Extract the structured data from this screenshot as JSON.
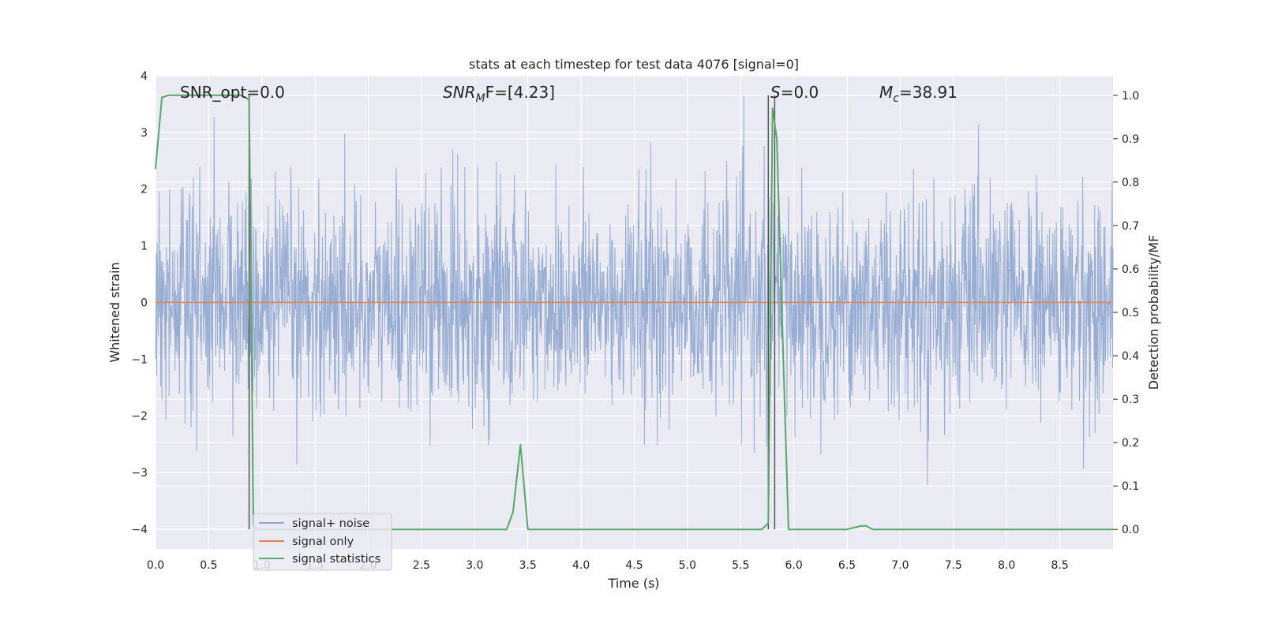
{
  "chart_data": {
    "type": "line",
    "title": "stats at each timestep for test data 4076 [signal=0]",
    "xlabel": "Time (s)",
    "ylabel_left": "Whitened strain",
    "ylabel_right": "Detection probability/MF",
    "xlim": [
      0.0,
      9.0
    ],
    "ylim_left": [
      -4.35,
      4.0
    ],
    "ylim_right": [
      -0.045,
      1.045
    ],
    "x_ticks": [
      "0.0",
      "0.5",
      "1.0",
      "1.5",
      "2.0",
      "2.5",
      "3.0",
      "3.5",
      "4.0",
      "4.5",
      "5.0",
      "5.5",
      "6.0",
      "6.5",
      "7.0",
      "7.5",
      "8.0",
      "8.5"
    ],
    "y_ticks_left": [
      "4",
      "3",
      "2",
      "1",
      "0",
      "−1",
      "−2",
      "−3",
      "−4"
    ],
    "y_ticks_right": [
      "1.0",
      "0.9",
      "0.8",
      "0.7",
      "0.6",
      "0.5",
      "0.4",
      "0.3",
      "0.2",
      "0.1",
      "0.0"
    ],
    "grid": true,
    "legend_position": "lower-left",
    "annotations": {
      "snr_opt": "SNR_opt=0.0",
      "snr_mf_label": "SNR",
      "snr_mf_sub": "M",
      "snr_mf_rest": "F=[4.23]",
      "s_label": "S",
      "s_rest": "=0.0",
      "mc_label": "M",
      "mc_sub": "c",
      "mc_rest": "=38.91"
    },
    "series": [
      {
        "name": "signal+ noise",
        "color": "#8fa6cf",
        "axis": "left",
        "description_range": [
          -3.8,
          3.7
        ]
      },
      {
        "name": "signal only",
        "color": "#dd8452",
        "axis": "left",
        "x": [
          0.0,
          9.0
        ],
        "y": [
          0.0,
          0.0
        ]
      },
      {
        "name": "signal statistics",
        "color": "#55a868",
        "axis": "right",
        "x": [
          0.0,
          0.06,
          0.12,
          0.2,
          0.3,
          0.5,
          0.7,
          0.8,
          0.88,
          0.9,
          0.92,
          0.94,
          1.0,
          1.5,
          2.0,
          2.5,
          3.0,
          3.3,
          3.36,
          3.43,
          3.5,
          3.6,
          4.0,
          4.5,
          5.0,
          5.5,
          5.7,
          5.76,
          5.8,
          5.84,
          5.9,
          5.95,
          6.0,
          6.5,
          6.58,
          6.63,
          6.68,
          6.74,
          7.0,
          7.5,
          8.0,
          8.5,
          9.0
        ],
        "y": [
          0.83,
          0.995,
          1.0,
          1.0,
          1.0,
          1.0,
          1.0,
          1.0,
          0.99,
          0.5,
          0.01,
          0.0,
          0.0,
          0.0,
          0.0,
          0.0,
          0.0,
          0.0,
          0.04,
          0.195,
          0.0,
          0.0,
          0.0,
          0.0,
          0.0,
          0.0,
          0.0,
          0.015,
          0.97,
          0.9,
          0.4,
          0.0,
          0.0,
          0.0,
          0.005,
          0.008,
          0.008,
          0.0,
          0.0,
          0.0,
          0.0,
          0.0,
          0.0
        ]
      }
    ],
    "vertical_markers": {
      "color": "#555555",
      "x": [
        0.88,
        5.76,
        5.82
      ]
    }
  }
}
